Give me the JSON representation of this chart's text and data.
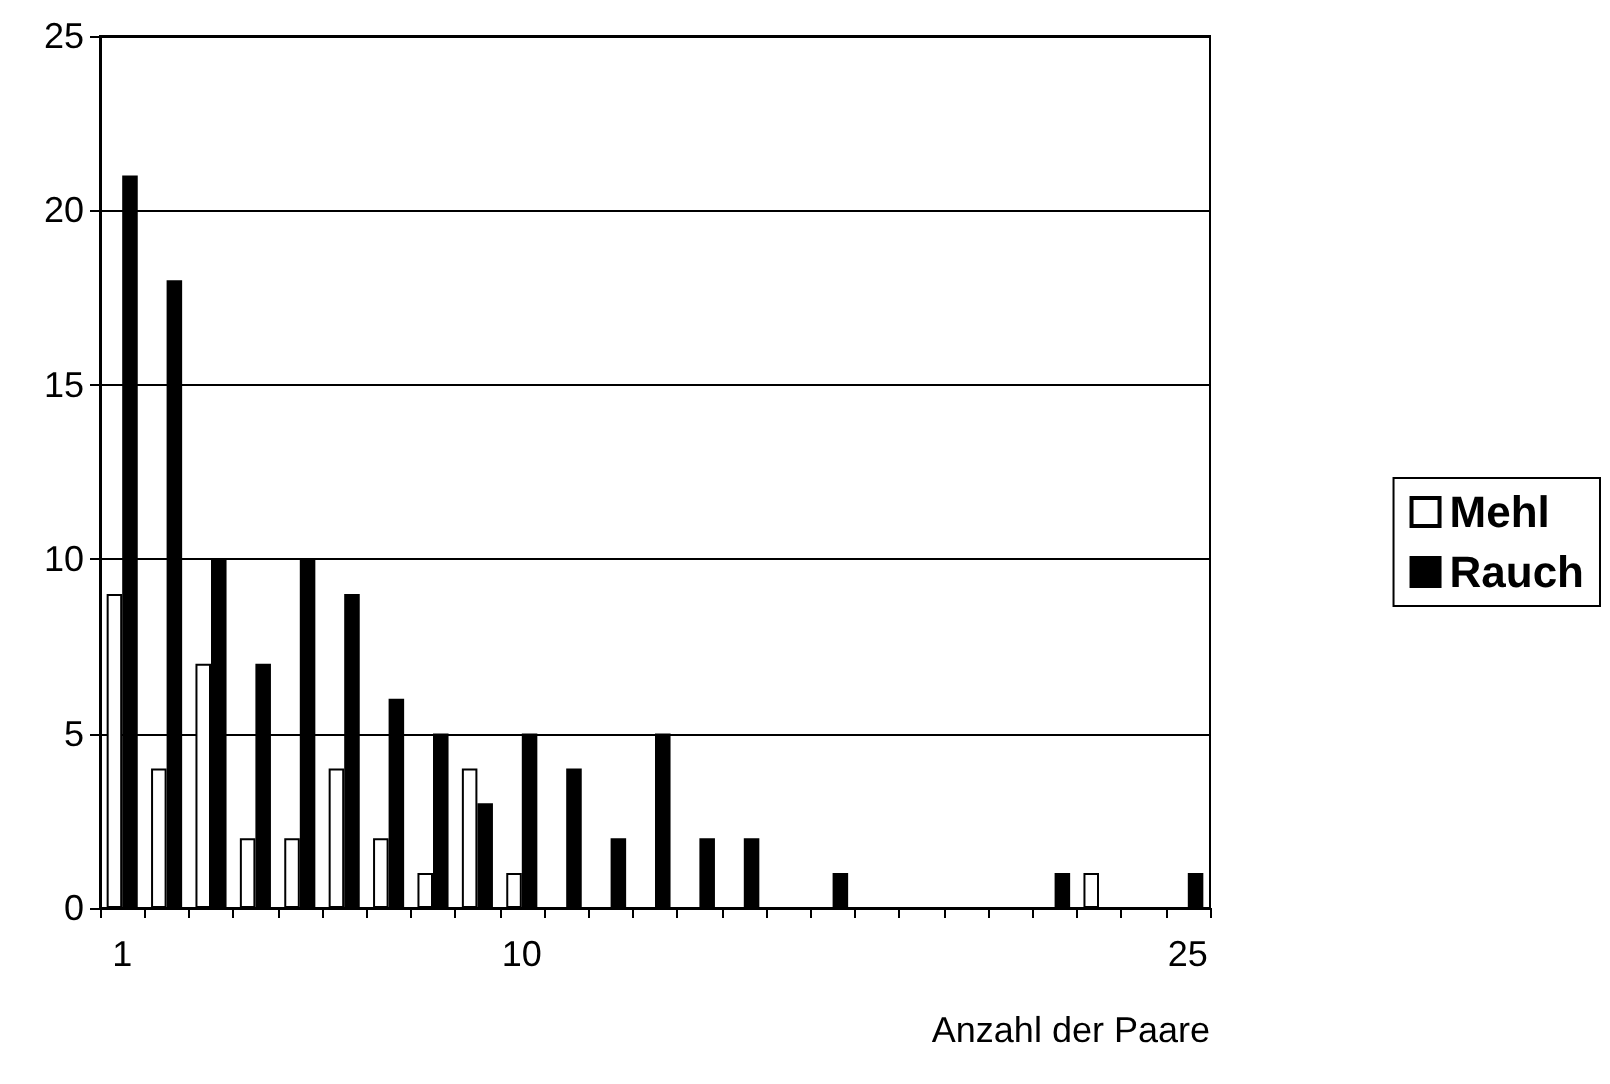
{
  "chart_data": {
    "type": "bar",
    "xlabel": "Anzahl der Paare",
    "categories": [
      "1",
      null,
      null,
      null,
      null,
      null,
      null,
      null,
      null,
      "10",
      null,
      null,
      null,
      null,
      null,
      null,
      null,
      null,
      null,
      null,
      null,
      null,
      null,
      null,
      "25"
    ],
    "series": [
      {
        "name": "Mehl",
        "color": "#ffffff",
        "values": [
          9,
          4,
          7,
          2,
          2,
          4,
          2,
          1,
          4,
          1,
          0,
          0,
          0,
          0,
          0,
          0,
          0,
          0,
          0,
          0,
          0,
          0,
          1,
          0,
          0
        ]
      },
      {
        "name": "Rauch",
        "color": "#000000",
        "values": [
          21,
          18,
          10,
          7,
          10,
          9,
          6,
          5,
          3,
          5,
          4,
          2,
          5,
          2,
          2,
          0,
          1,
          0,
          0,
          0,
          0,
          1,
          0,
          0,
          1
        ]
      }
    ],
    "ylim": [
      0,
      25
    ],
    "yticks": [
      0,
      5,
      10,
      15,
      20,
      25
    ],
    "grid": "y",
    "legend": "right"
  }
}
